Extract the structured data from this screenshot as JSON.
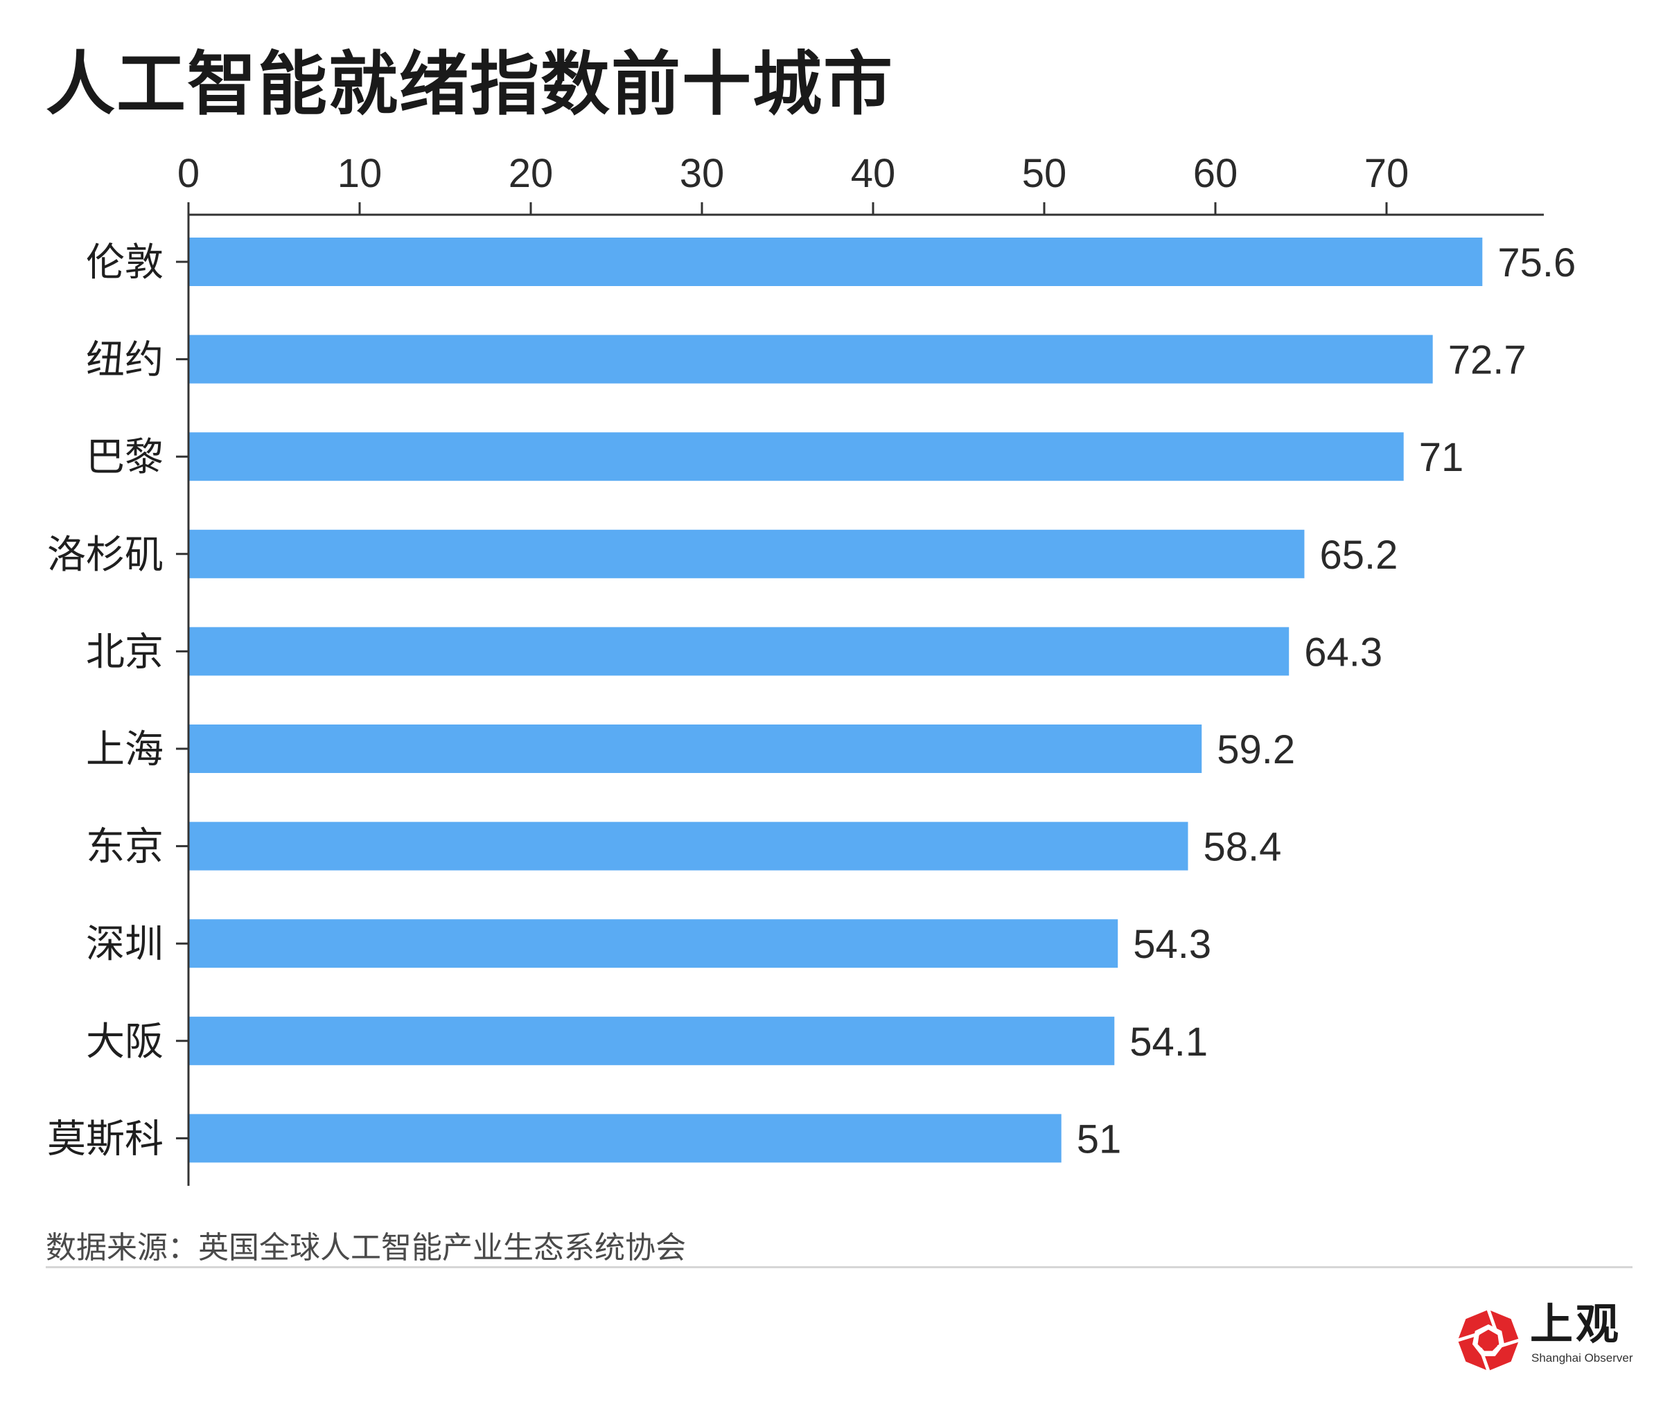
{
  "title": "人工智能就绪指数前十城市",
  "source": "数据来源：英国全球人工智能产业生态系统协会",
  "logo": {
    "cn": "上观",
    "en": "Shanghai Observer",
    "color": "#e2262a"
  },
  "colors": {
    "bar": "#5aabf3",
    "axis": "#333333"
  },
  "chart_data": {
    "type": "bar",
    "orientation": "horizontal",
    "title": "人工智能就绪指数前十城市",
    "xlabel": "",
    "ylabel": "",
    "xlim": [
      0,
      79
    ],
    "ticks": [
      0,
      10,
      20,
      30,
      40,
      50,
      60,
      70
    ],
    "axis_position": "top",
    "grid": false,
    "categories": [
      "伦敦",
      "纽约",
      "巴黎",
      "洛杉矶",
      "北京",
      "上海",
      "东京",
      "深圳",
      "大阪",
      "莫斯科"
    ],
    "values": [
      75.6,
      72.7,
      71,
      65.2,
      64.3,
      59.2,
      58.4,
      54.3,
      54.1,
      51
    ],
    "value_labels": [
      "75.6",
      "72.7",
      "71",
      "65.2",
      "64.3",
      "59.2",
      "58.4",
      "54.3",
      "54.1",
      "51"
    ]
  }
}
